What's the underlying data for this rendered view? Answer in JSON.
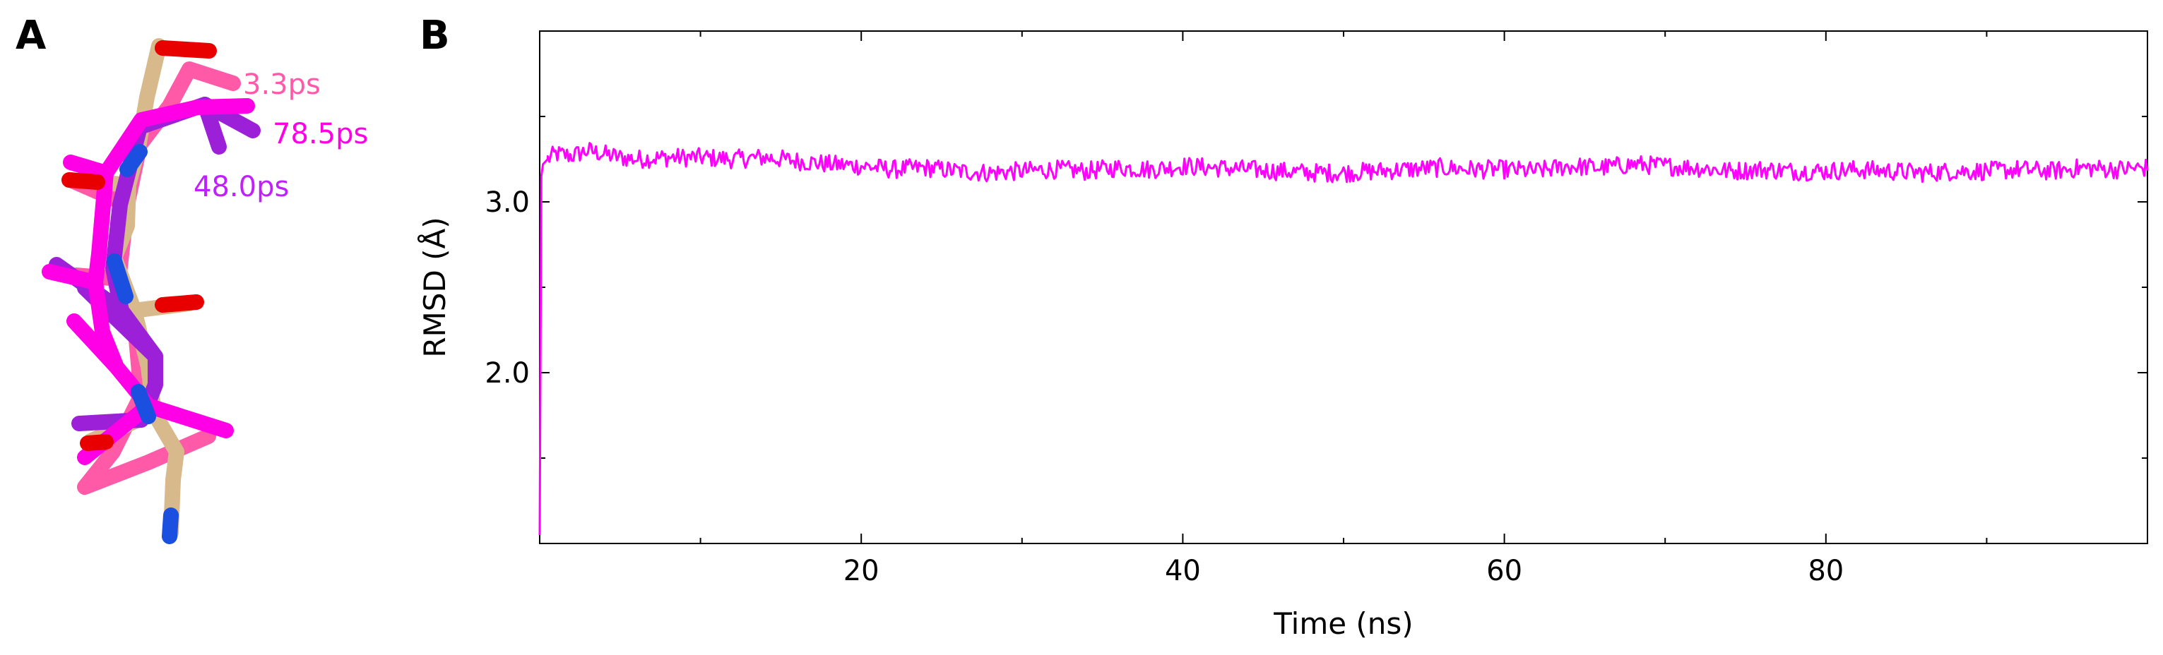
{
  "panels": {
    "a": "A",
    "b": "B"
  },
  "snapshots": [
    {
      "label": "3.3ps",
      "color": "#ff5aa8"
    },
    {
      "label": "78.5ps",
      "color": "#ff00e6"
    },
    {
      "label": "48.0ps",
      "color": "#c020ff"
    }
  ],
  "colors": {
    "line": "#ff00ff",
    "carbon": "#d8b98c",
    "oxygen": "#e80000",
    "nitrogen": "#1a4fe0"
  },
  "chart_data": {
    "type": "line",
    "xlabel": "Time (ns)",
    "ylabel": "RMSD (Å)",
    "xlim": [
      0,
      100
    ],
    "ylim": [
      1.0,
      4.0
    ],
    "xticks": [
      20,
      40,
      60,
      80
    ],
    "xtick_labels": [
      "20",
      "40",
      "60",
      "80"
    ],
    "yticks": [
      2.0,
      3.0
    ],
    "ytick_labels": [
      "2.0",
      "3.0"
    ],
    "grid": false,
    "series": [
      {
        "color": "#ff00ff",
        "x": [
          0.0,
          0.1,
          0.2,
          0.5,
          1,
          2,
          3,
          4,
          5,
          6,
          8,
          10,
          12,
          14,
          16,
          18,
          20,
          22,
          24,
          26,
          28,
          30,
          32,
          34,
          36,
          38,
          40,
          42,
          44,
          46,
          48,
          50,
          52,
          54,
          56,
          58,
          60,
          62,
          64,
          66,
          68,
          70,
          72,
          74,
          76,
          78,
          80,
          82,
          84,
          86,
          88,
          90,
          92,
          94,
          96,
          98,
          100
        ],
        "y": [
          1.05,
          3.15,
          3.22,
          3.25,
          3.28,
          3.27,
          3.3,
          3.28,
          3.26,
          3.25,
          3.26,
          3.26,
          3.25,
          3.26,
          3.24,
          3.22,
          3.21,
          3.19,
          3.2,
          3.18,
          3.17,
          3.18,
          3.19,
          3.18,
          3.2,
          3.19,
          3.21,
          3.2,
          3.19,
          3.18,
          3.17,
          3.17,
          3.18,
          3.19,
          3.2,
          3.19,
          3.19,
          3.18,
          3.21,
          3.2,
          3.22,
          3.21,
          3.2,
          3.18,
          3.19,
          3.18,
          3.18,
          3.19,
          3.18,
          3.17,
          3.18,
          3.18,
          3.19,
          3.18,
          3.2,
          3.19,
          3.2
        ]
      }
    ]
  }
}
